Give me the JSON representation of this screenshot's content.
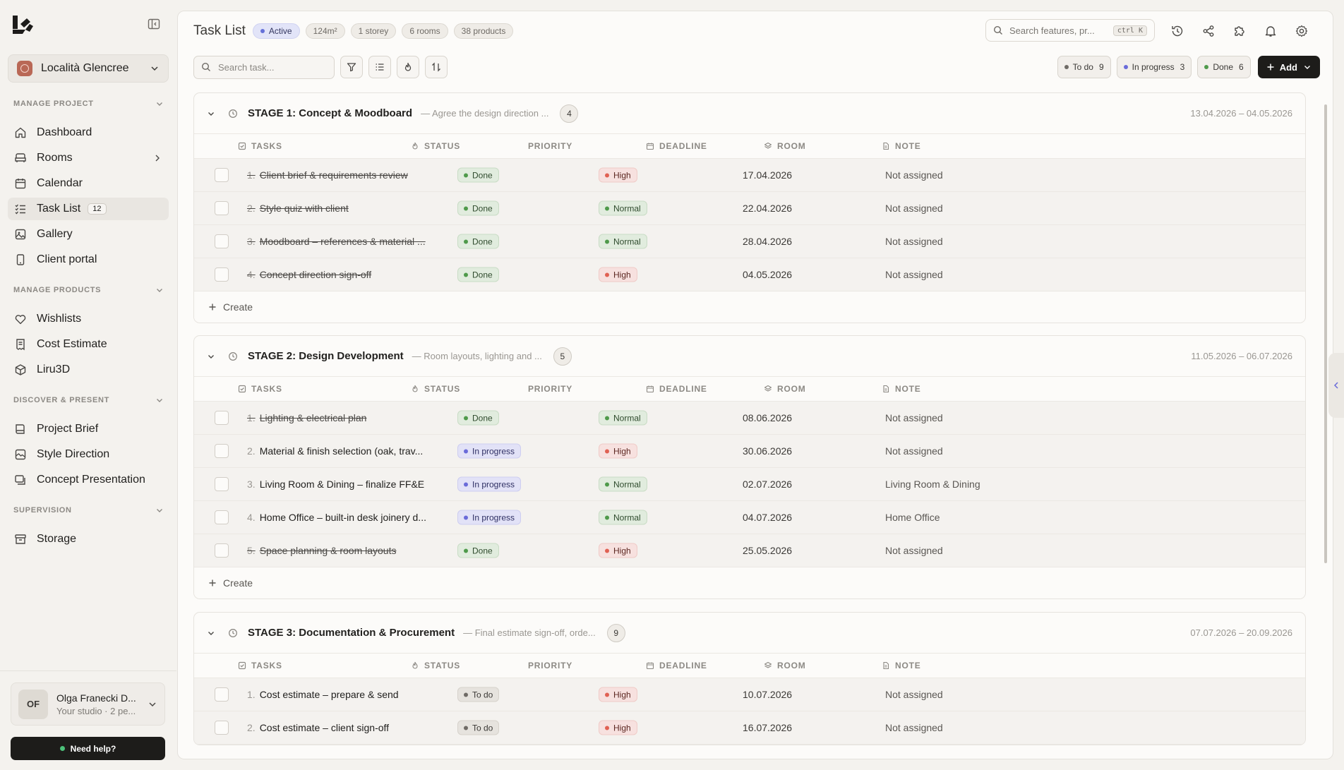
{
  "sidebar": {
    "project_name": "Località Glencree",
    "sections": {
      "manage_project": "MANAGE PROJECT",
      "manage_products": "MANAGE PRODUCTS",
      "discover_present": "DISCOVER & PRESENT",
      "supervision": "SUPERVISION"
    },
    "items": {
      "dashboard": "Dashboard",
      "rooms": "Rooms",
      "calendar": "Calendar",
      "task_list": "Task List",
      "task_list_count": "12",
      "gallery": "Gallery",
      "client_portal": "Client portal",
      "wishlists": "Wishlists",
      "cost_estimate": "Cost Estimate",
      "liru3d": "Liru3D",
      "project_brief": "Project Brief",
      "style_direction": "Style Direction",
      "concept_presentation": "Concept Presentation",
      "storage": "Storage"
    },
    "user": {
      "initials": "OF",
      "name": "Olga Franecki D...",
      "sub": "Your studio · 2 pe..."
    },
    "help_label": "Need help?"
  },
  "header": {
    "title": "Task List",
    "chips": {
      "status": "Active",
      "area": "124m²",
      "storeys": "1 storey",
      "rooms": "6 rooms",
      "products": "38 products"
    },
    "search_placeholder": "Search features, pr...",
    "search_shortcut": "ctrl K"
  },
  "toolbar": {
    "task_search_placeholder": "Search task...",
    "filters": {
      "todo_label": "To do",
      "todo_count": "9",
      "progress_label": "In progress",
      "progress_count": "3",
      "done_label": "Done",
      "done_count": "6"
    },
    "add_label": "Add"
  },
  "columns": {
    "tasks": "TASKS",
    "status": "STATUS",
    "priority": "PRIORITY",
    "deadline": "DEADLINE",
    "room": "ROOM",
    "note": "NOTE"
  },
  "create_label": "Create",
  "stages": [
    {
      "title": "STAGE 1: Concept & Moodboard",
      "desc": "— Agree the design direction ...",
      "count": "4",
      "dates": "13.04.2026 – 04.05.2026",
      "tasks": [
        {
          "num": "1.",
          "name": "Client brief & requirements review",
          "status": "Done",
          "priority": "High",
          "deadline": "17.04.2026",
          "room": "Not assigned"
        },
        {
          "num": "2.",
          "name": "Style quiz with client",
          "status": "Done",
          "priority": "Normal",
          "deadline": "22.04.2026",
          "room": "Not assigned"
        },
        {
          "num": "3.",
          "name": "Moodboard – references & material ...",
          "status": "Done",
          "priority": "Normal",
          "deadline": "28.04.2026",
          "room": "Not assigned"
        },
        {
          "num": "4.",
          "name": "Concept direction sign-off",
          "status": "Done",
          "priority": "High",
          "deadline": "04.05.2026",
          "room": "Not assigned"
        }
      ]
    },
    {
      "title": "STAGE 2: Design Development",
      "desc": "— Room layouts, lighting and ...",
      "count": "5",
      "dates": "11.05.2026 – 06.07.2026",
      "tasks": [
        {
          "num": "1.",
          "name": "Lighting & electrical plan",
          "status": "Done",
          "priority": "Normal",
          "deadline": "08.06.2026",
          "room": "Not assigned"
        },
        {
          "num": "2.",
          "name": "Material & finish selection (oak, trav...",
          "status": "In progress",
          "priority": "High",
          "deadline": "30.06.2026",
          "room": "Not assigned"
        },
        {
          "num": "3.",
          "name": "Living Room & Dining – finalize FF&E",
          "status": "In progress",
          "priority": "Normal",
          "deadline": "02.07.2026",
          "room": "Living Room & Dining"
        },
        {
          "num": "4.",
          "name": "Home Office – built-in desk joinery d...",
          "status": "In progress",
          "priority": "Normal",
          "deadline": "04.07.2026",
          "room": "Home Office"
        },
        {
          "num": "5.",
          "name": "Space planning & room layouts",
          "status": "Done",
          "priority": "High",
          "deadline": "25.05.2026",
          "room": "Not assigned"
        }
      ]
    },
    {
      "title": "STAGE 3: Documentation & Procurement",
      "desc": "— Final estimate sign-off, orde...",
      "count": "9",
      "dates": "07.07.2026 – 20.09.2026",
      "tasks": [
        {
          "num": "1.",
          "name": "Cost estimate – prepare & send",
          "status": "To do",
          "priority": "High",
          "deadline": "10.07.2026",
          "room": "Not assigned"
        },
        {
          "num": "2.",
          "name": "Cost estimate – client sign-off",
          "status": "To do",
          "priority": "High",
          "deadline": "16.07.2026",
          "room": "Not assigned"
        }
      ]
    }
  ]
}
